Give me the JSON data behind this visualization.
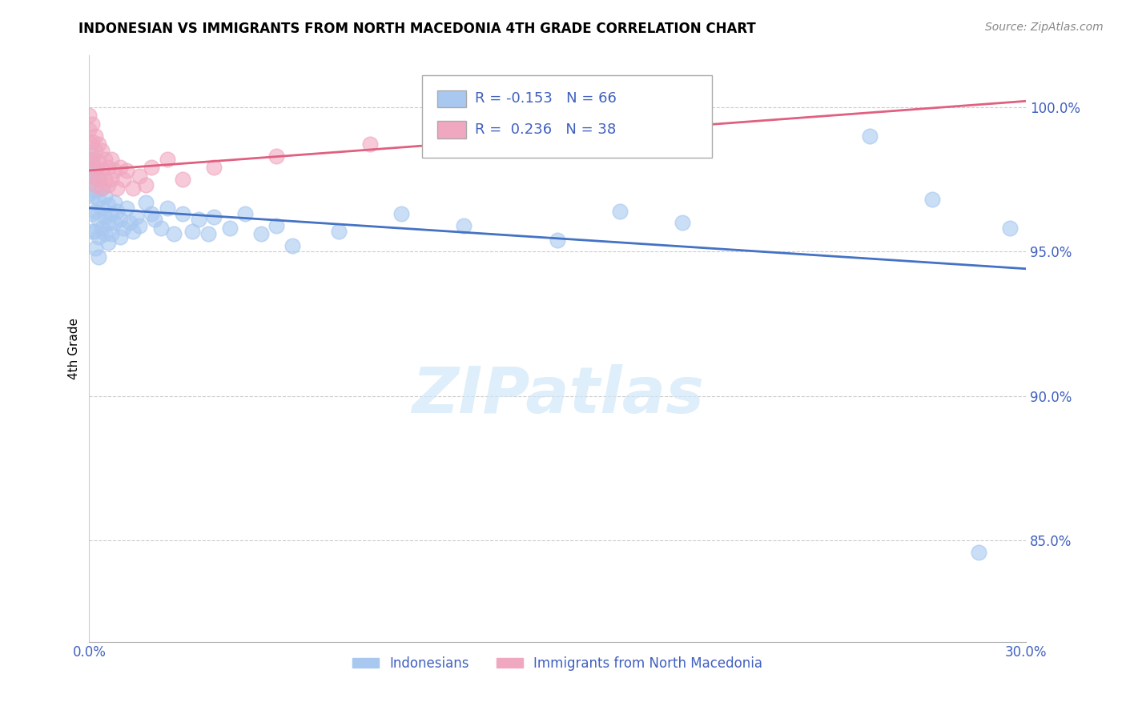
{
  "title": "INDONESIAN VS IMMIGRANTS FROM NORTH MACEDONIA 4TH GRADE CORRELATION CHART",
  "source": "Source: ZipAtlas.com",
  "ylabel": "4th Grade",
  "xlim": [
    0.0,
    0.3
  ],
  "ylim": [
    0.815,
    1.018
  ],
  "ytick_labels": [
    "85.0%",
    "90.0%",
    "95.0%",
    "100.0%"
  ],
  "ytick_values": [
    0.85,
    0.9,
    0.95,
    1.0
  ],
  "xtick_values": [
    0.0,
    0.05,
    0.1,
    0.15,
    0.2,
    0.25,
    0.3
  ],
  "xtick_labels": [
    "0.0%",
    "",
    "",
    "",
    "",
    "",
    "30.0%"
  ],
  "legend_labels": [
    "Indonesians",
    "Immigrants from North Macedonia"
  ],
  "blue_color": "#a8c8f0",
  "pink_color": "#f0a8c0",
  "blue_line_color": "#4472c4",
  "pink_line_color": "#e06080",
  "legend_text_color": "#4060c0",
  "r_blue": -0.153,
  "n_blue": 66,
  "r_pink": 0.236,
  "n_pink": 38,
  "watermark": "ZIPatlas",
  "blue_line_y0": 0.965,
  "blue_line_y1": 0.944,
  "pink_line_y0": 0.978,
  "pink_line_y1": 1.002,
  "blue_scatter_x": [
    0.0,
    0.0,
    0.0,
    0.001,
    0.001,
    0.001,
    0.001,
    0.001,
    0.002,
    0.002,
    0.002,
    0.002,
    0.002,
    0.003,
    0.003,
    0.003,
    0.003,
    0.003,
    0.004,
    0.004,
    0.004,
    0.005,
    0.005,
    0.005,
    0.006,
    0.006,
    0.006,
    0.007,
    0.007,
    0.008,
    0.008,
    0.009,
    0.01,
    0.01,
    0.011,
    0.012,
    0.013,
    0.014,
    0.015,
    0.016,
    0.018,
    0.02,
    0.021,
    0.023,
    0.025,
    0.027,
    0.03,
    0.033,
    0.035,
    0.038,
    0.04,
    0.045,
    0.05,
    0.055,
    0.06,
    0.065,
    0.08,
    0.1,
    0.12,
    0.15,
    0.17,
    0.19,
    0.25,
    0.27,
    0.285,
    0.295
  ],
  "blue_scatter_y": [
    0.98,
    0.975,
    0.97,
    0.983,
    0.976,
    0.969,
    0.963,
    0.957,
    0.978,
    0.971,
    0.964,
    0.957,
    0.951,
    0.975,
    0.968,
    0.961,
    0.955,
    0.948,
    0.972,
    0.965,
    0.958,
    0.969,
    0.962,
    0.956,
    0.966,
    0.96,
    0.953,
    0.963,
    0.956,
    0.967,
    0.96,
    0.964,
    0.961,
    0.955,
    0.958,
    0.965,
    0.96,
    0.957,
    0.962,
    0.959,
    0.967,
    0.963,
    0.961,
    0.958,
    0.965,
    0.956,
    0.963,
    0.957,
    0.961,
    0.956,
    0.962,
    0.958,
    0.963,
    0.956,
    0.959,
    0.952,
    0.957,
    0.963,
    0.959,
    0.954,
    0.964,
    0.96,
    0.99,
    0.968,
    0.846,
    0.958
  ],
  "pink_scatter_x": [
    0.0,
    0.0,
    0.0,
    0.0,
    0.001,
    0.001,
    0.001,
    0.001,
    0.002,
    0.002,
    0.002,
    0.002,
    0.003,
    0.003,
    0.003,
    0.004,
    0.004,
    0.004,
    0.005,
    0.005,
    0.006,
    0.006,
    0.007,
    0.007,
    0.008,
    0.009,
    0.01,
    0.011,
    0.012,
    0.014,
    0.016,
    0.018,
    0.02,
    0.025,
    0.03,
    0.04,
    0.06,
    0.09
  ],
  "pink_scatter_y": [
    0.997,
    0.992,
    0.988,
    0.982,
    0.994,
    0.988,
    0.982,
    0.976,
    0.99,
    0.985,
    0.979,
    0.973,
    0.987,
    0.981,
    0.975,
    0.985,
    0.978,
    0.972,
    0.982,
    0.975,
    0.979,
    0.973,
    0.982,
    0.975,
    0.978,
    0.972,
    0.979,
    0.975,
    0.978,
    0.972,
    0.976,
    0.973,
    0.979,
    0.982,
    0.975,
    0.979,
    0.983,
    0.987
  ]
}
